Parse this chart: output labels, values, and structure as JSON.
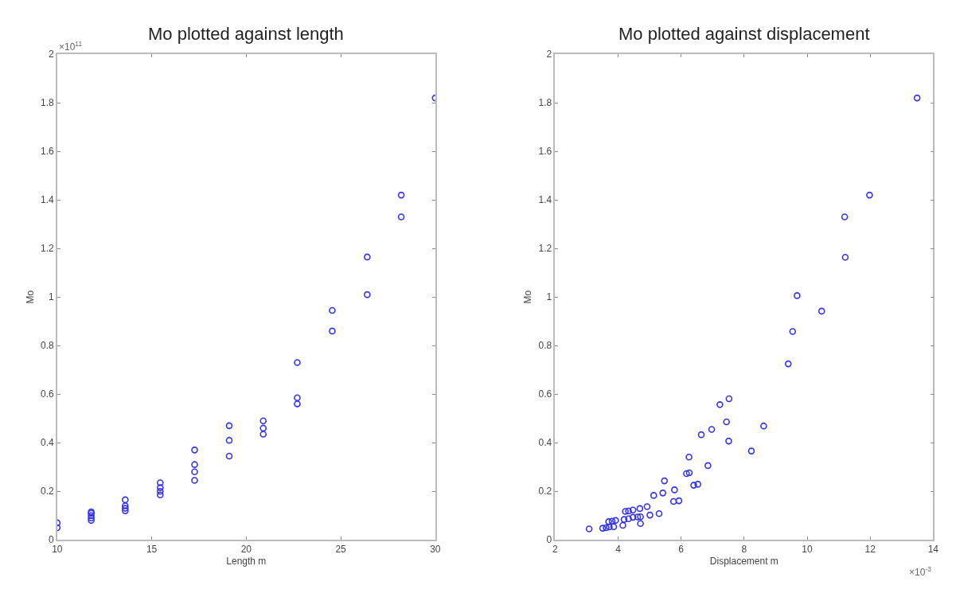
{
  "chart_data": [
    {
      "type": "scatter",
      "title": "Mo plotted against length",
      "xlabel": "Length m",
      "ylabel": "Mo",
      "marker": "circle",
      "xlim": [
        10,
        30
      ],
      "xticks": [
        10,
        15,
        20,
        25,
        30
      ],
      "ylim": [
        0,
        2
      ],
      "yticks": [
        0,
        0.2,
        0.4,
        0.6,
        0.8,
        1,
        1.2,
        1.4,
        1.6,
        1.8,
        2
      ],
      "annotations": [
        "×10$^{11}$"
      ],
      "series": [
        {
          "color": "#3333ee",
          "x": [
            10,
            10,
            11.8,
            11.8,
            11.8,
            11.8,
            11.8,
            13.6,
            13.6,
            13.6,
            13.6,
            15.45,
            15.45,
            15.45,
            15.45,
            17.27,
            17.27,
            17.27,
            17.27,
            19.1,
            19.1,
            19.1,
            20.9,
            20.9,
            20.9,
            22.7,
            22.7,
            22.7,
            24.55,
            24.55,
            26.4,
            26.4,
            28.2,
            28.2,
            30
          ],
          "values": [
            0.05,
            0.07,
            0.08,
            0.09,
            0.1,
            0.11,
            0.115,
            0.12,
            0.13,
            0.14,
            0.165,
            0.185,
            0.2,
            0.215,
            0.235,
            0.245,
            0.28,
            0.31,
            0.37,
            0.345,
            0.41,
            0.47,
            0.435,
            0.46,
            0.49,
            0.56,
            0.585,
            0.73,
            0.86,
            0.945,
            1.01,
            1.165,
            1.33,
            1.42,
            1.82
          ]
        }
      ]
    },
    {
      "type": "scatter",
      "title": "Mo plotted against displacement",
      "xlabel": "Displacement m",
      "ylabel": "Mo",
      "marker": "circle",
      "xlim": [
        2,
        14
      ],
      "xticks": [
        2,
        4,
        6,
        8,
        10,
        12,
        14
      ],
      "ylim": [
        0,
        2
      ],
      "yticks": [
        0,
        0.2,
        0.4,
        0.6,
        0.8,
        1,
        1.2,
        1.4,
        1.6,
        1.8,
        2
      ],
      "annotations": [
        "×10$^{-3}$"
      ],
      "series": [
        {
          "color": "#3333ee",
          "x": [
            3.08,
            3.51,
            3.62,
            3.72,
            3.86,
            3.7,
            3.81,
            3.92,
            4.15,
            4.19,
            4.33,
            4.23,
            4.33,
            4.47,
            4.69,
            4.47,
            4.62,
            4.71,
            4.71,
            4.92,
            5.01,
            5.3,
            5.13,
            5.42,
            5.47,
            5.79,
            5.76,
            5.93,
            6.17,
            6.25,
            6.26,
            6.4,
            6.53,
            6.64,
            6.85,
            6.97,
            7.23,
            7.44,
            7.52,
            7.51,
            8.23,
            8.62,
            9.4,
            9.54,
            9.68,
            10.46,
            11.19,
            11.21,
            11.98,
            13.49
          ],
          "values": [
            0.045,
            0.048,
            0.05,
            0.053,
            0.054,
            0.075,
            0.077,
            0.08,
            0.06,
            0.084,
            0.087,
            0.117,
            0.119,
            0.123,
            0.129,
            0.093,
            0.094,
            0.095,
            0.067,
            0.137,
            0.102,
            0.108,
            0.183,
            0.193,
            0.243,
            0.206,
            0.158,
            0.161,
            0.273,
            0.341,
            0.276,
            0.225,
            0.229,
            0.433,
            0.306,
            0.455,
            0.557,
            0.486,
            0.581,
            0.407,
            0.366,
            0.469,
            0.725,
            0.858,
            1.006,
            0.942,
            1.33,
            1.164,
            1.42,
            1.82
          ]
        }
      ]
    }
  ]
}
